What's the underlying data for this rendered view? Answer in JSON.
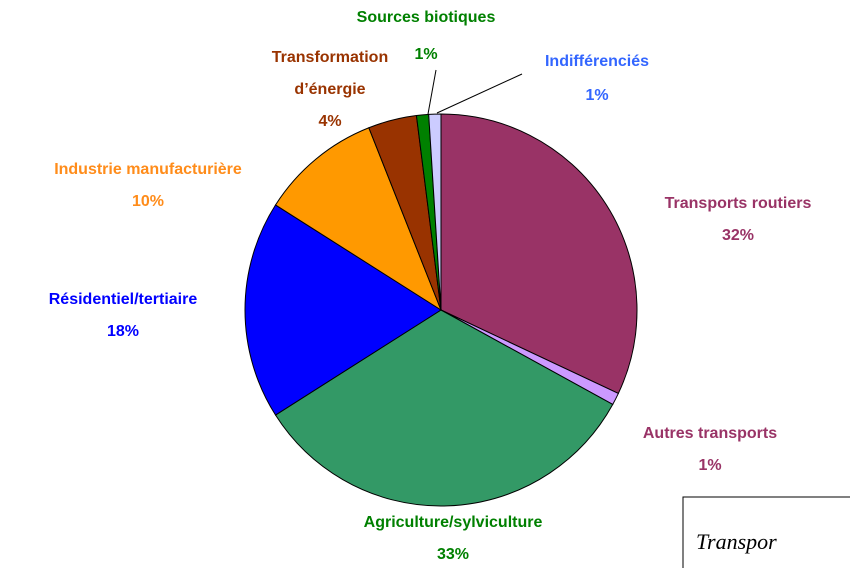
{
  "chart_data": {
    "type": "pie",
    "categories": [
      "Transports routiers",
      "Autres transports",
      "Agriculture/sylviculture",
      "Résidentiel/tertiaire",
      "Industrie manufacturière",
      "Transformation d’énergie",
      "Sources biotiques",
      "Indifférenciés"
    ],
    "values": [
      32,
      1,
      33,
      18,
      10,
      4,
      1,
      1
    ],
    "value_labels": [
      "32%",
      "1%",
      "33%",
      "18%",
      "10%",
      "4%",
      "1%",
      "1%"
    ],
    "colors": [
      "#993366",
      "#cc99ff",
      "#339966",
      "#0000ff",
      "#ff9900",
      "#993300",
      "#008000",
      "#ccccff"
    ],
    "label_colors": [
      "#993366",
      "#993366",
      "#008000",
      "#0000ff",
      "#ff8c1a",
      "#993300",
      "#008000",
      "#3366ff"
    ],
    "annotation": "Transpor"
  }
}
